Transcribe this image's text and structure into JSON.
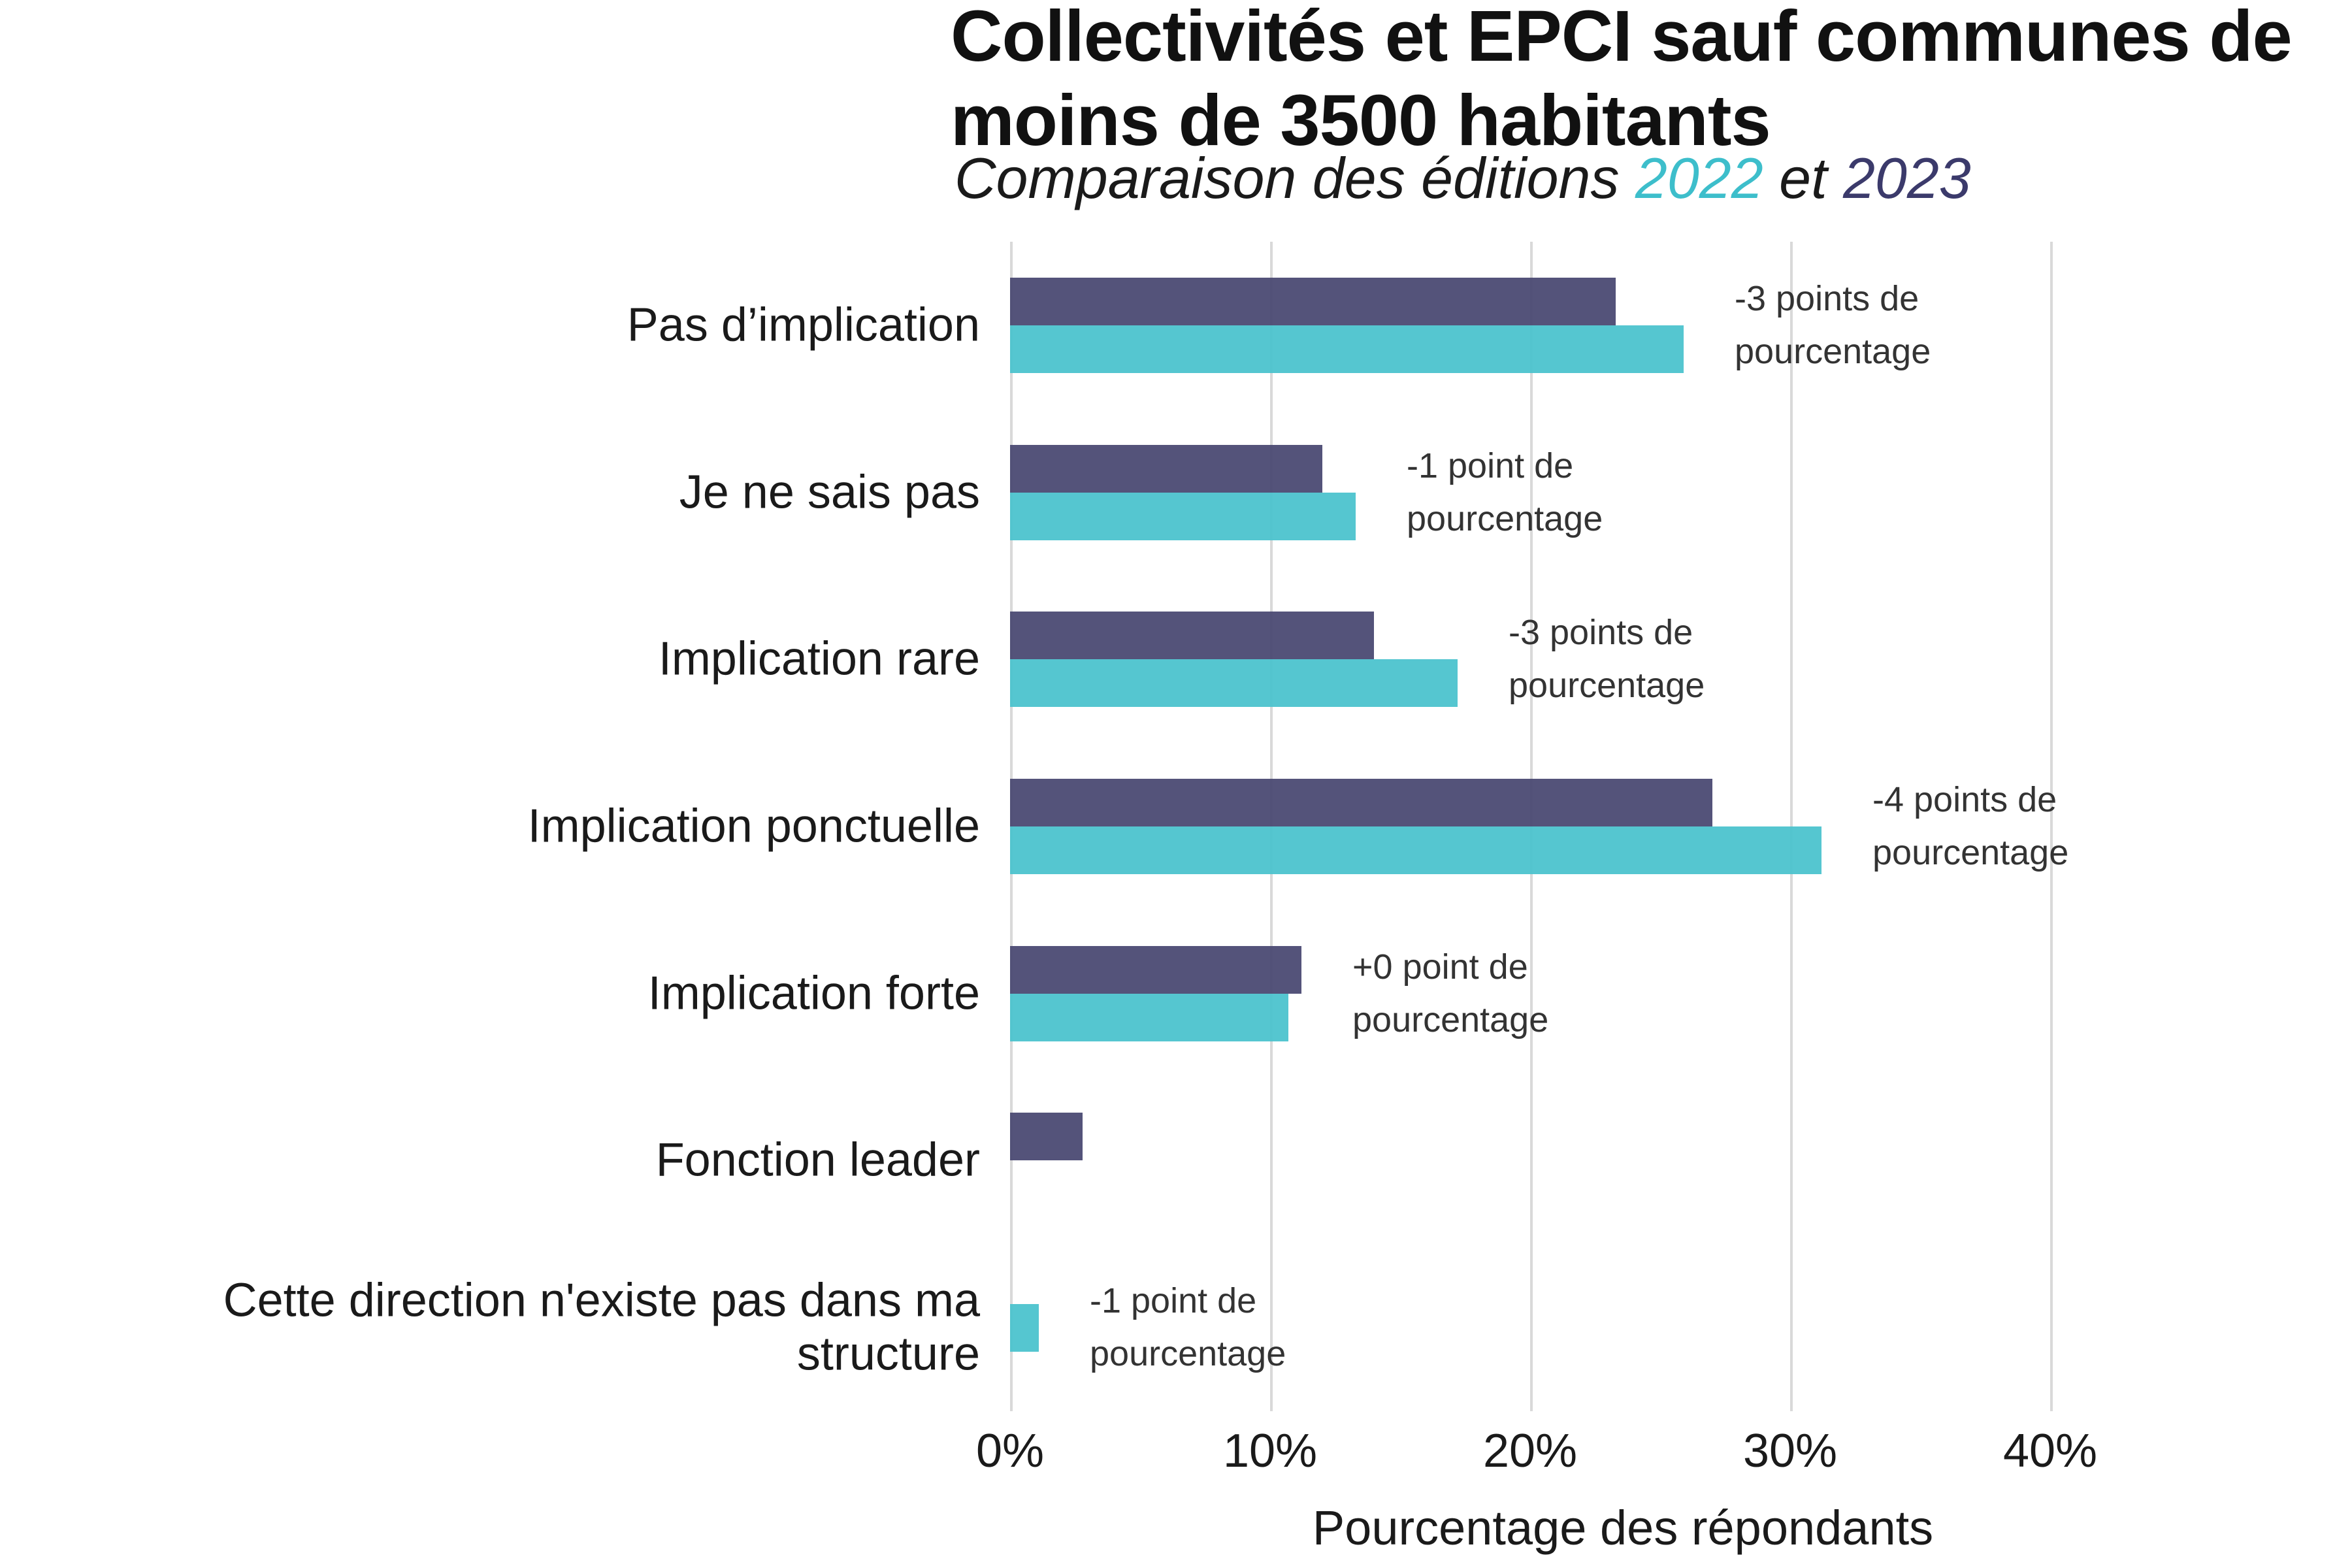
{
  "header": {
    "title_lines": [
      "Collectivités et EPCI sauf communes de",
      "moins de 3500 habitants"
    ],
    "subtitle_parts": [
      {
        "text": "Comparaison des éditions ",
        "color": "#1a1a1a"
      },
      {
        "text": "2022",
        "color": "#3DBECB"
      },
      {
        "text": " et ",
        "color": "#1a1a1a"
      },
      {
        "text": "2023",
        "color": "#3B3A6B"
      }
    ]
  },
  "chart_data": {
    "type": "bar",
    "orientation": "horizontal",
    "title": "Collectivités et EPCI sauf communes de moins de 3500 habitants",
    "subtitle": "Comparaison des éditions 2022 et 2023",
    "categories": [
      "Pas d’implication",
      "Je ne sais pas",
      "Implication rare",
      "Implication ponctuelle",
      "Implication forte",
      "Fonction leader",
      "Cette direction n'existe pas dans ma structure"
    ],
    "series": [
      {
        "name": "2023",
        "color": "#474670",
        "values": [
          23.3,
          12.0,
          14.0,
          27.0,
          11.2,
          2.8,
          null
        ]
      },
      {
        "name": "2022",
        "color": "#48C2CC",
        "values": [
          25.9,
          13.3,
          17.2,
          31.2,
          10.7,
          null,
          1.1
        ]
      }
    ],
    "annotations": [
      {
        "lines": [
          "-3 points de",
          "pourcentage"
        ]
      },
      {
        "lines": [
          "-1 point de",
          "pourcentage"
        ]
      },
      {
        "lines": [
          "-3 points de",
          "pourcentage"
        ]
      },
      {
        "lines": [
          "-4 points de",
          "pourcentage"
        ]
      },
      {
        "lines": [
          "+0 point de",
          "pourcentage"
        ]
      },
      null,
      {
        "lines": [
          "-1 point de",
          "pourcentage"
        ]
      }
    ],
    "xlabel": "Pourcentage des répondants",
    "x_ticks": [
      "0%",
      "10%",
      "20%",
      "30%",
      "40%"
    ],
    "x_tick_values": [
      0,
      10,
      20,
      30,
      40
    ],
    "xlim": [
      0,
      47
    ],
    "grid": "vertical",
    "gridline_color": "#D9D9D9",
    "annotation_color": "#333333",
    "text_color": "#1a1a1a",
    "legend": "none (series colors referenced in subtitle years)"
  }
}
